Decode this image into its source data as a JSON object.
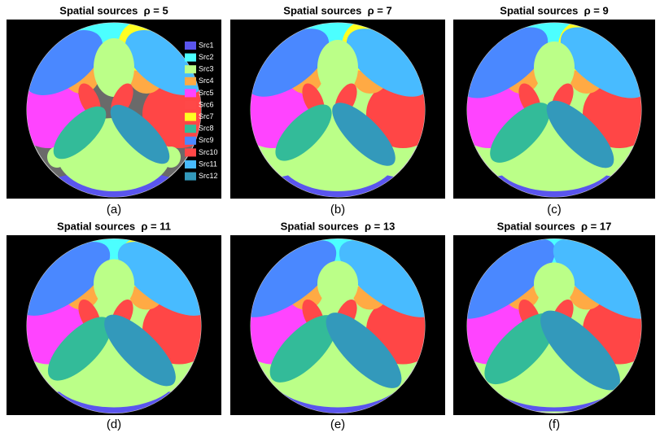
{
  "panels": [
    {
      "title": "Spatial sources  ρ = 5",
      "caption": "(a)"
    },
    {
      "title": "Spatial sources  ρ = 7",
      "caption": "(b)"
    },
    {
      "title": "Spatial sources  ρ = 9",
      "caption": "(c)"
    },
    {
      "title": "Spatial sources  ρ = 11",
      "caption": "(d)"
    },
    {
      "title": "Spatial sources  ρ = 13",
      "caption": "(e)"
    },
    {
      "title": "Spatial sources  ρ = 17",
      "caption": "(f)"
    }
  ],
  "legend": [
    {
      "name": "Src1",
      "color": "#5a55ee"
    },
    {
      "name": "Src2",
      "color": "#4cffff"
    },
    {
      "name": "Src3",
      "color": "#bbff88"
    },
    {
      "name": "Src4",
      "color": "#ffaa44"
    },
    {
      "name": "Src5",
      "color": "#ff44ff"
    },
    {
      "name": "Src6",
      "color": "#ff4848"
    },
    {
      "name": "Src7",
      "color": "#ffff22"
    },
    {
      "name": "Src8",
      "color": "#33bb99"
    },
    {
      "name": "Src9",
      "color": "#4a88ff"
    },
    {
      "name": "Src10",
      "color": "#ff4646"
    },
    {
      "name": "Src11",
      "color": "#48bbff"
    },
    {
      "name": "Src12",
      "color": "#3399bb"
    }
  ]
}
